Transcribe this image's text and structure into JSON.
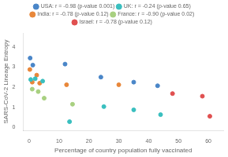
{
  "chart_data": {
    "type": "scatter",
    "xlabel": "Percentage of country population fully vaccinated",
    "ylabel": "SARS-CoV-2 Lineage Entropy",
    "xlim": [
      -2,
      65
    ],
    "ylim": [
      -0.15,
      4.7
    ],
    "xticks": [
      0,
      10,
      20,
      30,
      40,
      50,
      60
    ],
    "yticks": [
      0,
      1,
      2,
      3,
      4
    ],
    "grid": false,
    "legend": "top",
    "marker": "circle",
    "series": [
      {
        "name": "USA: r = -0.98 (p-value 0.001)",
        "color": "#4A86C8",
        "x": [
          0.3,
          1.2,
          12.0,
          24.0,
          35.0,
          43.0
        ],
        "values": [
          3.45,
          3.1,
          3.15,
          2.5,
          2.25,
          2.07
        ]
      },
      {
        "name": "UK: r = -0.24 (p-value 0.65)",
        "color": "#3ABFBF",
        "x": [
          0.5,
          2.0,
          4.5,
          13.5,
          25.0,
          35.0,
          44.0
        ],
        "values": [
          2.38,
          2.42,
          2.3,
          0.28,
          1.03,
          0.87,
          0.63
        ]
      },
      {
        "name": "India: r = -0.78 (p-value 0.12)",
        "color": "#E8873A",
        "x": [
          0.2,
          1.0,
          2.5,
          3.5,
          12.5,
          30.0
        ],
        "values": [
          2.88,
          2.25,
          2.6,
          2.2,
          2.12,
          2.12
        ]
      },
      {
        "name": "France: r = -0.90 (p-value 0.02)",
        "color": "#A8D080",
        "x": [
          1.0,
          3.0,
          5.0,
          14.5
        ],
        "values": [
          1.9,
          1.78,
          1.45,
          1.15
        ]
      },
      {
        "name": "Israel: r = -0.78 (p-value 0.12)",
        "color": "#E05050",
        "x": [
          48.0,
          58.0,
          60.5
        ],
        "values": [
          1.68,
          1.55,
          0.55
        ]
      }
    ]
  }
}
